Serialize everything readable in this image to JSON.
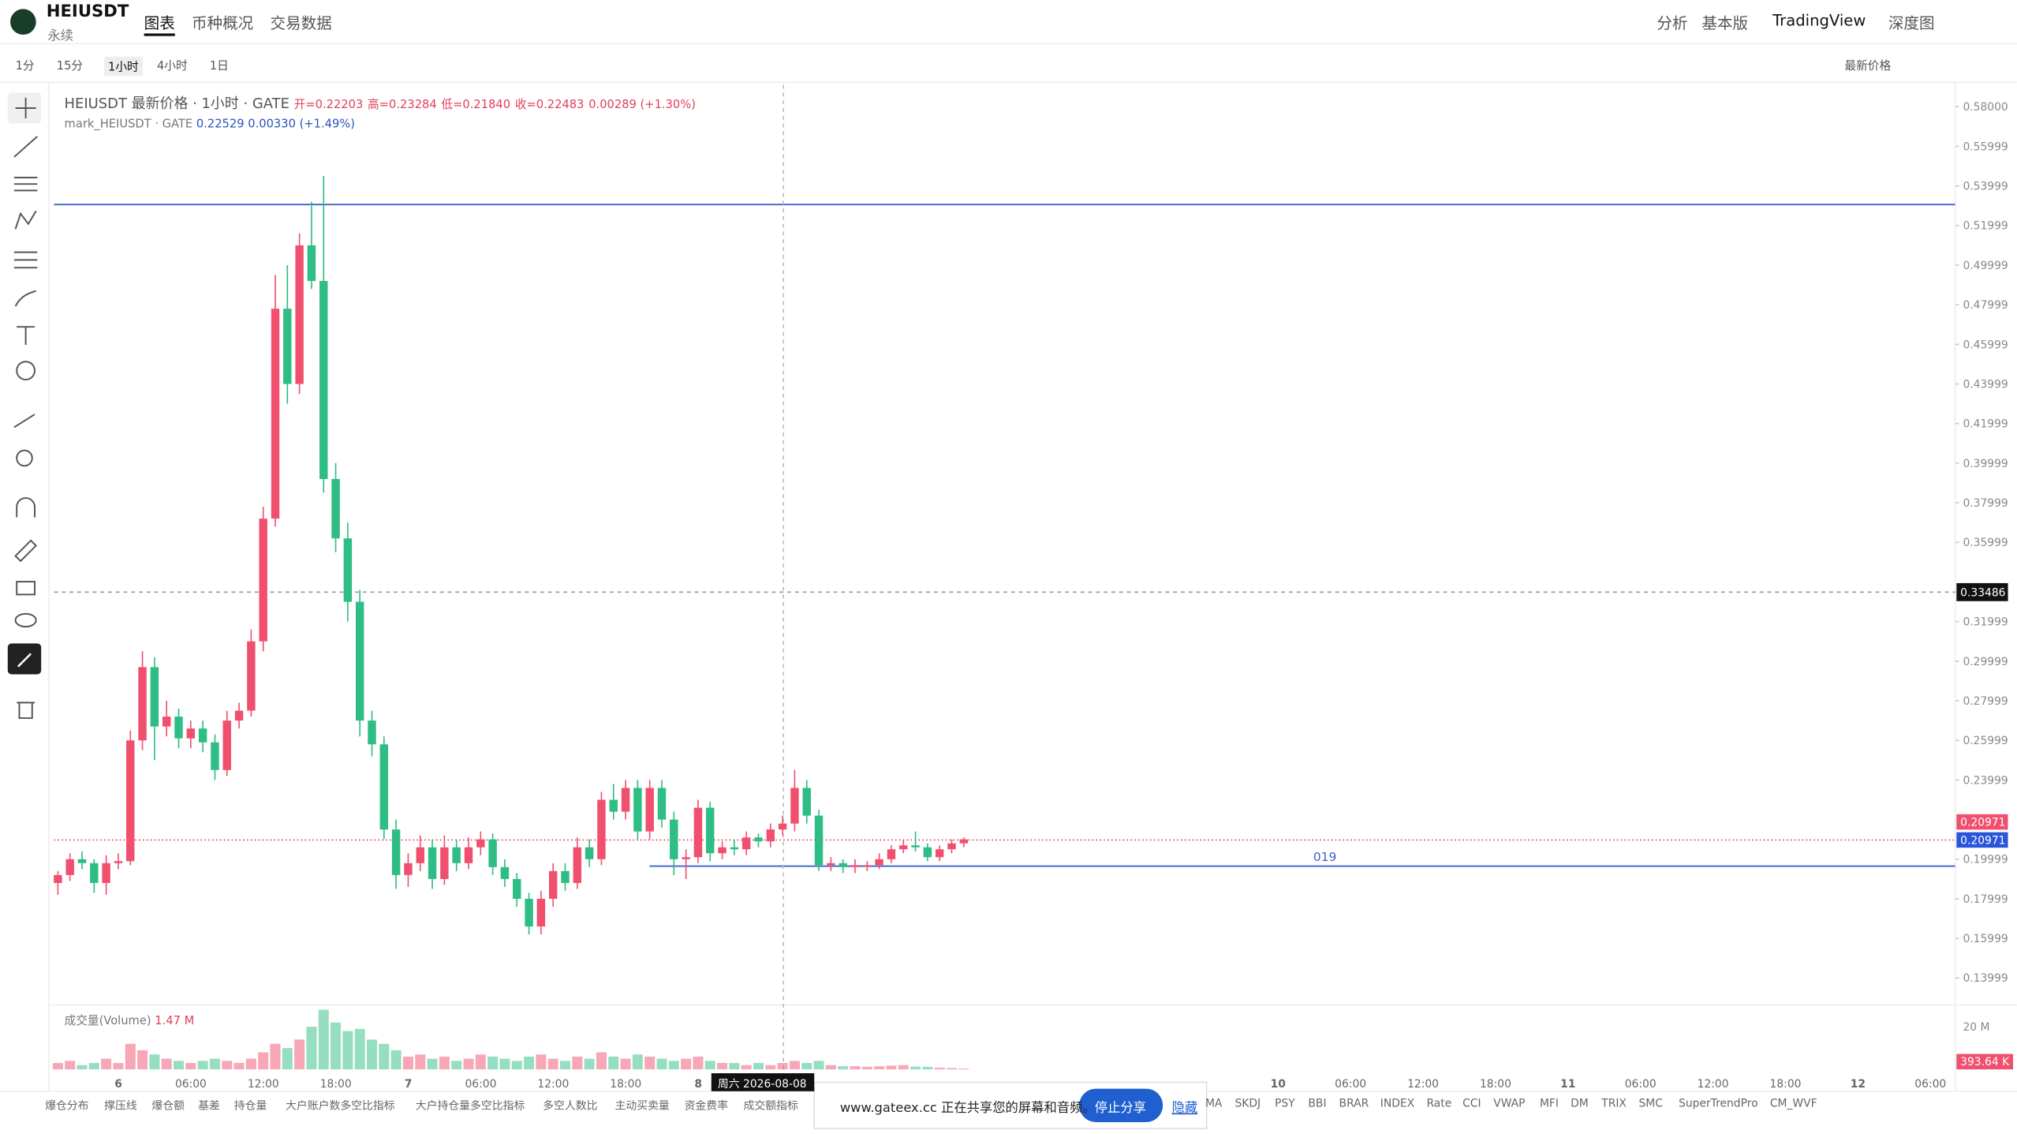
{
  "header": {
    "symbol": "HEIUSDT",
    "contract": "永续",
    "tabs": [
      "图表",
      "币种概况",
      "交易数据"
    ],
    "right": [
      "分析",
      "基本版",
      "TradingView",
      "深度图"
    ]
  },
  "toolbar": {
    "intervals": [
      "1分",
      "15分",
      "1小时",
      "4小时",
      "1日"
    ],
    "price_source": "最新价格"
  },
  "legend": {
    "title": "HEIUSDT 最新价格 · 1小时 · GATE",
    "open": "开=0.22203",
    "high": "高=0.23284",
    "low": "低=0.21840",
    "close": "收=0.22483",
    "change": "0.00289 (+1.30%)",
    "mark_name": "mark_HEIUSDT · GATE",
    "mark_price": "0.22529",
    "mark_change": "0.00330 (+1.49%)"
  },
  "chart_data": {
    "type": "candlestick",
    "up_color": "#f0506e",
    "down_color": "#2ebd85",
    "candles": [
      [
        0.188,
        0.194,
        0.182,
        0.192
      ],
      [
        0.192,
        0.203,
        0.189,
        0.2
      ],
      [
        0.2,
        0.204,
        0.195,
        0.198
      ],
      [
        0.198,
        0.2,
        0.183,
        0.188
      ],
      [
        0.188,
        0.202,
        0.182,
        0.198
      ],
      [
        0.198,
        0.203,
        0.195,
        0.199
      ],
      [
        0.199,
        0.265,
        0.197,
        0.26
      ],
      [
        0.26,
        0.305,
        0.255,
        0.297
      ],
      [
        0.297,
        0.302,
        0.25,
        0.267
      ],
      [
        0.267,
        0.28,
        0.262,
        0.272
      ],
      [
        0.272,
        0.276,
        0.256,
        0.261
      ],
      [
        0.261,
        0.27,
        0.256,
        0.266
      ],
      [
        0.266,
        0.27,
        0.254,
        0.259
      ],
      [
        0.259,
        0.263,
        0.24,
        0.245
      ],
      [
        0.245,
        0.275,
        0.242,
        0.27
      ],
      [
        0.27,
        0.279,
        0.266,
        0.275
      ],
      [
        0.275,
        0.316,
        0.272,
        0.31
      ],
      [
        0.31,
        0.378,
        0.305,
        0.372
      ],
      [
        0.372,
        0.495,
        0.368,
        0.478
      ],
      [
        0.478,
        0.5,
        0.43,
        0.44
      ],
      [
        0.44,
        0.516,
        0.435,
        0.51
      ],
      [
        0.51,
        0.532,
        0.488,
        0.492
      ],
      [
        0.492,
        0.545,
        0.385,
        0.392
      ],
      [
        0.392,
        0.4,
        0.355,
        0.362
      ],
      [
        0.362,
        0.37,
        0.32,
        0.33
      ],
      [
        0.33,
        0.336,
        0.262,
        0.27
      ],
      [
        0.27,
        0.275,
        0.252,
        0.258
      ],
      [
        0.258,
        0.262,
        0.21,
        0.215
      ],
      [
        0.215,
        0.22,
        0.185,
        0.192
      ],
      [
        0.192,
        0.203,
        0.186,
        0.198
      ],
      [
        0.198,
        0.212,
        0.194,
        0.206
      ],
      [
        0.206,
        0.21,
        0.185,
        0.19
      ],
      [
        0.19,
        0.212,
        0.187,
        0.206
      ],
      [
        0.206,
        0.21,
        0.194,
        0.198
      ],
      [
        0.198,
        0.211,
        0.195,
        0.206
      ],
      [
        0.206,
        0.214,
        0.202,
        0.21
      ],
      [
        0.21,
        0.213,
        0.192,
        0.196
      ],
      [
        0.196,
        0.2,
        0.186,
        0.19
      ],
      [
        0.19,
        0.193,
        0.176,
        0.18
      ],
      [
        0.18,
        0.183,
        0.162,
        0.166
      ],
      [
        0.166,
        0.184,
        0.162,
        0.18
      ],
      [
        0.18,
        0.198,
        0.176,
        0.194
      ],
      [
        0.194,
        0.198,
        0.184,
        0.188
      ],
      [
        0.188,
        0.211,
        0.185,
        0.206
      ],
      [
        0.206,
        0.21,
        0.196,
        0.2
      ],
      [
        0.2,
        0.234,
        0.197,
        0.23
      ],
      [
        0.23,
        0.238,
        0.22,
        0.224
      ],
      [
        0.224,
        0.24,
        0.22,
        0.236
      ],
      [
        0.236,
        0.24,
        0.21,
        0.214
      ],
      [
        0.214,
        0.24,
        0.21,
        0.236
      ],
      [
        0.236,
        0.24,
        0.216,
        0.22
      ],
      [
        0.22,
        0.224,
        0.192,
        0.2
      ],
      [
        0.2,
        0.205,
        0.19,
        0.201
      ],
      [
        0.201,
        0.23,
        0.198,
        0.226
      ],
      [
        0.226,
        0.229,
        0.199,
        0.203
      ],
      [
        0.203,
        0.209,
        0.2,
        0.206
      ],
      [
        0.206,
        0.21,
        0.202,
        0.205
      ],
      [
        0.205,
        0.214,
        0.202,
        0.211
      ],
      [
        0.211,
        0.213,
        0.206,
        0.209
      ],
      [
        0.209,
        0.218,
        0.206,
        0.215
      ],
      [
        0.215,
        0.222,
        0.212,
        0.218
      ],
      [
        0.218,
        0.245,
        0.214,
        0.236
      ],
      [
        0.236,
        0.24,
        0.218,
        0.222
      ],
      [
        0.222,
        0.225,
        0.194,
        0.197
      ],
      [
        0.197,
        0.201,
        0.194,
        0.198
      ],
      [
        0.198,
        0.2,
        0.193,
        0.196
      ],
      [
        0.196,
        0.2,
        0.193,
        0.197
      ],
      [
        0.197,
        0.199,
        0.194,
        0.197
      ],
      [
        0.197,
        0.203,
        0.195,
        0.2
      ],
      [
        0.2,
        0.207,
        0.198,
        0.205
      ],
      [
        0.205,
        0.21,
        0.203,
        0.207
      ],
      [
        0.207,
        0.214,
        0.204,
        0.206
      ],
      [
        0.206,
        0.208,
        0.199,
        0.201
      ],
      [
        0.201,
        0.207,
        0.199,
        0.205
      ],
      [
        0.205,
        0.21,
        0.203,
        0.208
      ],
      [
        0.208,
        0.211,
        0.206,
        0.21
      ]
    ],
    "volumes": [
      3,
      4,
      2,
      3,
      5,
      3,
      12,
      9,
      7,
      5,
      4,
      3,
      4,
      5,
      4,
      3,
      5,
      8,
      12,
      10,
      14,
      20,
      28,
      22,
      18,
      19,
      14,
      12,
      9,
      6,
      7,
      5,
      6,
      4,
      5,
      7,
      6,
      5,
      4,
      6,
      7,
      5,
      4,
      6,
      5,
      8,
      6,
      5,
      7,
      6,
      5,
      4,
      5,
      6,
      4,
      3,
      3,
      2,
      3,
      2,
      3,
      4,
      3,
      4,
      2,
      1.5,
      1.5,
      1.2,
      1.5,
      1.8,
      2,
      1.3,
      1.2,
      0.8,
      0.6,
      0.39364
    ],
    "ylim": [
      0.127,
      0.591
    ],
    "yticks": [
      {
        "value": 0.58,
        "label": "0.58000"
      },
      0.55999,
      0.53999,
      0.51999,
      0.49999,
      0.47999,
      0.45999,
      0.43999,
      0.41999,
      0.39999,
      0.37999,
      0.35999,
      0.31999,
      0.29999,
      0.27999,
      0.25999,
      0.23999,
      0.19999,
      0.17999,
      0.15999,
      0.13999
    ],
    "volume_title": "成交量(Volume)",
    "volume_value": "1.47 M",
    "volume_ylim": [
      0,
      29
    ],
    "volume_ticks": [
      {
        "value": 20,
        "label": "20 M"
      }
    ],
    "current_volume": {
      "value": 0.39364,
      "label": "393.64 K"
    },
    "last_price": {
      "value": 0.20971,
      "label": "0.20971"
    },
    "mark_price_line": {
      "value": 0.20971,
      "label": "0.20971"
    },
    "crosshair": {
      "value": 0.33486,
      "label": "0.33486",
      "date": "周六 2026-08-08"
    },
    "hlines": [
      {
        "value": 0.5306,
        "color": "#3a63c8"
      },
      {
        "value": 0.1965,
        "color": "#3a63c8",
        "label": "019"
      }
    ],
    "time_labels": [
      "6",
      "06:00",
      "12:00",
      "18:00",
      "7",
      "06:00",
      "12:00",
      "18:00",
      "8",
      null,
      null,
      null,
      null,
      null,
      null,
      null,
      "10",
      "06:00",
      "12:00",
      "18:00",
      "11",
      "06:00",
      "12:00",
      "18:00",
      "12",
      "06:00"
    ]
  },
  "indicators": [
    "爆仓分布",
    "撑压线",
    "爆仓额",
    "基差",
    "持仓量",
    "大户账户数多空比指标",
    "大户持仓量多空比指标",
    "多空人数比",
    "主动买卖量",
    "资金费率",
    "成交额指标",
    "MA",
    "SKDJ",
    "PSY",
    "BBI",
    "BRAR",
    "INDEX",
    "Rate",
    "CCI",
    "VWAP",
    "MFI",
    "DM",
    "TRIX",
    "SMC",
    "SuperTrendPro",
    "CM_WVF"
  ],
  "share": {
    "message": "www.gateex.cc 正在共享您的屏幕和音频。",
    "stop": "停止分享",
    "hide": "隐藏"
  }
}
